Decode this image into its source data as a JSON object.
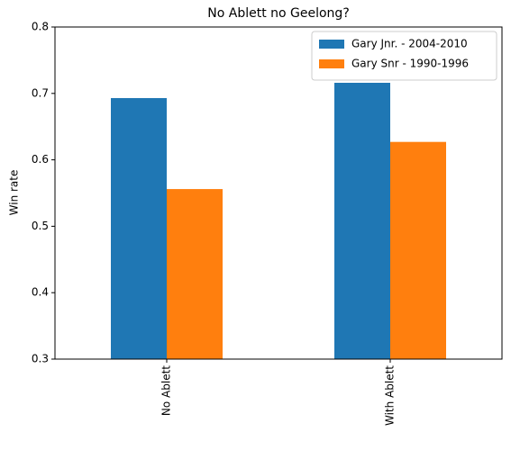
{
  "chart_data": {
    "type": "bar",
    "title": "No Ablett no Geelong?",
    "y_label": "Win rate",
    "categories": [
      "No Ablett",
      "With Ablett"
    ],
    "series": [
      {
        "name": "Gary Jnr. - 2004-2010",
        "color": "#1f77b4",
        "values": [
          0.693,
          0.716
        ]
      },
      {
        "name": "Gary Snr - 1990-1996",
        "color": "#ff7f0e",
        "values": [
          0.556,
          0.627
        ]
      }
    ],
    "ylim": [
      0.3,
      0.8
    ],
    "yticks": [
      0.3,
      0.4,
      0.5,
      0.6,
      0.7,
      0.8
    ],
    "legend": "upper right"
  }
}
